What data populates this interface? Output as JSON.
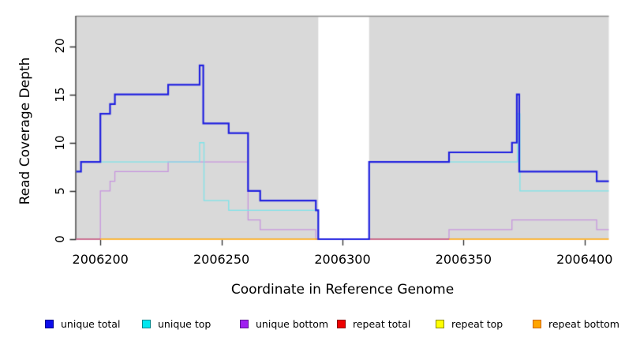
{
  "chart_data": {
    "type": "line",
    "subtype": "step-coverage-plot",
    "title": "",
    "xlabel": "Coordinate in Reference Genome",
    "ylabel": "Read Coverage Depth",
    "xlim": [
      2006190,
      2006410
    ],
    "ylim": [
      0,
      23.15
    ],
    "x_ticks": [
      2006200,
      2006250,
      2006300,
      2006350,
      2006400
    ],
    "y_ticks": [
      0,
      5,
      10,
      15,
      20
    ],
    "grid": false,
    "plot_bg_color": "#d9d9d9",
    "plot_top_border_color": "#8a8a8a",
    "axis_color": "#2b2b2b",
    "gap_region": {
      "from": 2006290,
      "to": 2006311,
      "color": "#ffffff"
    },
    "series": [
      {
        "name": "unique total",
        "color": "#2121e0",
        "line_width": 2.2,
        "steps": [
          [
            2006190,
            7
          ],
          [
            2006192,
            8
          ],
          [
            2006200,
            13
          ],
          [
            2006204,
            14
          ],
          [
            2006206,
            15
          ],
          [
            2006228,
            16
          ],
          [
            2006241,
            18
          ],
          [
            2006242.5,
            12
          ],
          [
            2006253,
            11
          ],
          [
            2006261,
            5
          ],
          [
            2006266,
            4
          ],
          [
            2006289,
            3
          ],
          [
            2006290,
            0
          ],
          [
            2006311,
            8
          ],
          [
            2006344,
            9
          ],
          [
            2006370,
            10
          ],
          [
            2006372,
            15
          ],
          [
            2006373,
            7
          ],
          [
            2006405,
            6
          ],
          [
            2006410,
            6
          ]
        ]
      },
      {
        "name": "unique top",
        "color": "#7ce4ea",
        "line_width": 1.3,
        "steps": [
          [
            2006190,
            7
          ],
          [
            2006192,
            8
          ],
          [
            2006241,
            10
          ],
          [
            2006242.8,
            4
          ],
          [
            2006253,
            3
          ],
          [
            2006290,
            0
          ],
          [
            2006311,
            8
          ],
          [
            2006372.3,
            13
          ],
          [
            2006373.3,
            5
          ],
          [
            2006410,
            5
          ]
        ]
      },
      {
        "name": "unique bottom",
        "color": "#c795de",
        "line_width": 1.3,
        "steps": [
          [
            2006190,
            0
          ],
          [
            2006200,
            5
          ],
          [
            2006204,
            6
          ],
          [
            2006206,
            7
          ],
          [
            2006228,
            8
          ],
          [
            2006261,
            2
          ],
          [
            2006266,
            1
          ],
          [
            2006289,
            0
          ],
          [
            2006344,
            1
          ],
          [
            2006370,
            2
          ],
          [
            2006405,
            1
          ],
          [
            2006410,
            1
          ]
        ]
      },
      {
        "name": "repeat total",
        "color": "#c9566f",
        "line_width": 1.4,
        "steps": [
          [
            2006190,
            0
          ],
          [
            2006410,
            0
          ]
        ],
        "visible_segments": [
          [
            2006190,
            2006200
          ],
          [
            2006311,
            2006344
          ]
        ]
      },
      {
        "name": "repeat top",
        "color": "#ffff00",
        "line_width": 1.2,
        "steps": [
          [
            2006190,
            0
          ],
          [
            2006410,
            0
          ]
        ],
        "visible_segments": []
      },
      {
        "name": "repeat bottom",
        "color": "#ffa500",
        "line_width": 1.4,
        "steps": [
          [
            2006190,
            0
          ],
          [
            2006410,
            0
          ]
        ],
        "visible_segments": [
          [
            2006200,
            2006290
          ],
          [
            2006344,
            2006410
          ]
        ]
      }
    ]
  },
  "legend": {
    "items": [
      {
        "label": "unique total",
        "fill": "#0d0deb",
        "border": "#00008b"
      },
      {
        "label": "unique top",
        "fill": "#00e8f0",
        "border": "#00868b"
      },
      {
        "label": "unique bottom",
        "fill": "#a020f0",
        "border": "#5e1694"
      },
      {
        "label": "repeat total",
        "fill": "#ee0000",
        "border": "#8b0000"
      },
      {
        "label": "repeat top",
        "fill": "#ffff00",
        "border": "#8b8b00"
      },
      {
        "label": "repeat bottom",
        "fill": "#ffa500",
        "border": "#cd6600"
      }
    ]
  }
}
